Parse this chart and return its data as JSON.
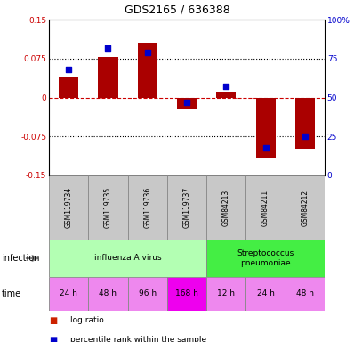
{
  "title": "GDS2165 / 636388",
  "samples": [
    "GSM119734",
    "GSM119735",
    "GSM119736",
    "GSM119737",
    "GSM84213",
    "GSM84211",
    "GSM84212"
  ],
  "log_ratio": [
    0.038,
    0.078,
    0.105,
    -0.022,
    0.012,
    -0.115,
    -0.098
  ],
  "percentile_rank": [
    68,
    82,
    79,
    47,
    57,
    18,
    25
  ],
  "ylim": [
    -0.15,
    0.15
  ],
  "yticks_left": [
    -0.15,
    -0.075,
    0,
    0.075,
    0.15
  ],
  "ytick_labels_left": [
    "-0.15",
    "-0.075",
    "0",
    "0.075",
    "0.15"
  ],
  "yticks_right": [
    0,
    25,
    50,
    75,
    100
  ],
  "ytick_labels_right": [
    "0",
    "25",
    "50",
    "75",
    "100%"
  ],
  "hlines_dotted": [
    -0.075,
    0.075
  ],
  "hline_dashed": 0,
  "infection_groups": [
    {
      "label": "influenza A virus",
      "start": 0,
      "end": 4,
      "color": "#b3ffb3"
    },
    {
      "label": "Streptococcus\npneumoniae",
      "start": 4,
      "end": 7,
      "color": "#44ee44"
    }
  ],
  "time_labels": [
    "24 h",
    "48 h",
    "96 h",
    "168 h",
    "12 h",
    "24 h",
    "48 h"
  ],
  "time_colors": [
    "#ee88ee",
    "#ee88ee",
    "#ee88ee",
    "#ee00ee",
    "#ee88ee",
    "#ee88ee",
    "#ee88ee"
  ],
  "bar_color": "#aa0000",
  "dot_color": "#0000cc",
  "sample_box_color": "#c8c8c8",
  "sample_box_border": "#888888",
  "left_label_color": "#cc0000",
  "right_label_color": "#0000cc",
  "zero_line_color": "#cc0000",
  "dotted_line_color": "#000000",
  "legend_bar_color": "#cc2200",
  "legend_dot_color": "#0000cc"
}
